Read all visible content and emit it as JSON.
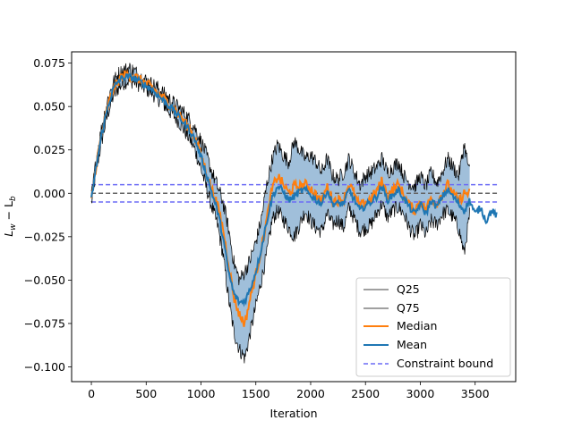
{
  "chart_data": {
    "type": "line",
    "title": "",
    "xlabel": "Iteration",
    "ylabel": "L_w − L_b",
    "ylabel_main": "L",
    "ylabel_sub1": "w",
    "ylabel_mid": " − L",
    "ylabel_sub2": "b",
    "xlim": [
      -180,
      3870
    ],
    "ylim": [
      -0.1085,
      0.0815
    ],
    "xticks": [
      0,
      500,
      1000,
      1500,
      2000,
      2500,
      3000,
      3500
    ],
    "xtick_labels": [
      "0",
      "500",
      "1000",
      "1500",
      "2000",
      "2500",
      "3000",
      "3500"
    ],
    "yticks": [
      -0.1,
      -0.075,
      -0.05,
      -0.025,
      0.0,
      0.025,
      0.05,
      0.075
    ],
    "ytick_labels": [
      "−0.100",
      "−0.075",
      "−0.050",
      "−0.025",
      "0.000",
      "0.025",
      "0.050",
      "0.075"
    ],
    "grid": false,
    "legend_position": "lower-right",
    "colors": {
      "q": "#000000",
      "median": "#ff7f0e",
      "mean": "#1f77b4",
      "band": "#8fb4d4",
      "bound": "#6b6bf5",
      "zero": "#666666"
    },
    "series": [
      {
        "name": "Q25",
        "role": "q25",
        "x": [
          0,
          50,
          100,
          150,
          200,
          250,
          300,
          350,
          400,
          450,
          500,
          550,
          600,
          650,
          700,
          750,
          800,
          850,
          900,
          950,
          1000,
          1050,
          1100,
          1150,
          1200,
          1250,
          1300,
          1350,
          1400,
          1450,
          1500,
          1550,
          1600,
          1650,
          1700,
          1750,
          1800,
          1850,
          1900,
          1950,
          2000,
          2050,
          2100,
          2150,
          2200,
          2250,
          2300,
          2350,
          2400,
          2450,
          2500,
          2550,
          2600,
          2650,
          2700,
          2750,
          2800,
          2850,
          2900,
          2950,
          3000,
          3050,
          3100,
          3150,
          3200,
          3250,
          3300,
          3350,
          3400,
          3450
        ],
        "y": [
          -0.006,
          0.015,
          0.032,
          0.046,
          0.056,
          0.061,
          0.064,
          0.065,
          0.064,
          0.062,
          0.06,
          0.058,
          0.055,
          0.052,
          0.048,
          0.045,
          0.041,
          0.036,
          0.031,
          0.024,
          0.014,
          0.003,
          -0.008,
          -0.018,
          -0.035,
          -0.06,
          -0.08,
          -0.09,
          -0.095,
          -0.08,
          -0.065,
          -0.05,
          -0.035,
          -0.015,
          -0.01,
          -0.015,
          -0.02,
          -0.025,
          -0.018,
          -0.01,
          -0.016,
          -0.02,
          -0.022,
          -0.012,
          -0.018,
          -0.015,
          -0.02,
          -0.008,
          -0.015,
          -0.022,
          -0.02,
          -0.018,
          -0.012,
          -0.006,
          -0.014,
          -0.01,
          -0.008,
          -0.012,
          -0.02,
          -0.025,
          -0.018,
          -0.024,
          -0.016,
          -0.018,
          -0.012,
          -0.01,
          -0.014,
          -0.02,
          -0.035,
          -0.012
        ]
      },
      {
        "name": "Q75",
        "role": "q75",
        "x": [
          0,
          50,
          100,
          150,
          200,
          250,
          300,
          350,
          400,
          450,
          500,
          550,
          600,
          650,
          700,
          750,
          800,
          850,
          900,
          950,
          1000,
          1050,
          1100,
          1150,
          1200,
          1250,
          1300,
          1350,
          1400,
          1450,
          1500,
          1550,
          1600,
          1650,
          1700,
          1750,
          1800,
          1850,
          1900,
          1950,
          2000,
          2050,
          2100,
          2150,
          2200,
          2250,
          2300,
          2350,
          2400,
          2450,
          2500,
          2550,
          2600,
          2650,
          2700,
          2750,
          2800,
          2850,
          2900,
          2950,
          3000,
          3050,
          3100,
          3150,
          3200,
          3250,
          3300,
          3350,
          3400,
          3450
        ],
        "y": [
          -0.002,
          0.022,
          0.04,
          0.054,
          0.064,
          0.069,
          0.071,
          0.072,
          0.07,
          0.067,
          0.065,
          0.063,
          0.061,
          0.058,
          0.055,
          0.052,
          0.049,
          0.046,
          0.042,
          0.037,
          0.03,
          0.022,
          0.012,
          0.004,
          -0.005,
          -0.02,
          -0.04,
          -0.05,
          -0.045,
          -0.038,
          -0.028,
          -0.015,
          0.005,
          0.02,
          0.028,
          0.022,
          0.018,
          0.03,
          0.025,
          0.02,
          0.022,
          0.018,
          0.012,
          0.02,
          0.01,
          0.008,
          0.012,
          0.02,
          0.012,
          0.005,
          0.01,
          0.012,
          0.015,
          0.02,
          0.012,
          0.015,
          0.018,
          0.01,
          0.006,
          0.004,
          0.01,
          0.004,
          0.012,
          0.006,
          0.012,
          0.02,
          0.015,
          0.01,
          0.028,
          0.012
        ]
      },
      {
        "name": "Median",
        "role": "median",
        "x": [
          0,
          50,
          100,
          150,
          200,
          250,
          300,
          350,
          400,
          450,
          500,
          550,
          600,
          650,
          700,
          750,
          800,
          850,
          900,
          950,
          1000,
          1050,
          1100,
          1150,
          1200,
          1250,
          1300,
          1350,
          1400,
          1450,
          1500,
          1550,
          1600,
          1650,
          1700,
          1750,
          1800,
          1850,
          1900,
          1950,
          2000,
          2050,
          2100,
          2150,
          2200,
          2250,
          2300,
          2350,
          2400,
          2450,
          2500,
          2550,
          2600,
          2650,
          2700,
          2750,
          2800,
          2850,
          2900,
          2950,
          3000,
          3050,
          3100,
          3150,
          3200,
          3250,
          3300,
          3350,
          3400,
          3450
        ],
        "y": [
          -0.004,
          0.019,
          0.036,
          0.05,
          0.06,
          0.065,
          0.068,
          0.068,
          0.067,
          0.065,
          0.063,
          0.061,
          0.058,
          0.055,
          0.052,
          0.049,
          0.045,
          0.041,
          0.037,
          0.031,
          0.022,
          0.012,
          0.002,
          -0.007,
          -0.02,
          -0.04,
          -0.06,
          -0.07,
          -0.075,
          -0.06,
          -0.047,
          -0.032,
          -0.015,
          0.003,
          0.01,
          0.005,
          0.0,
          0.004,
          0.004,
          0.005,
          0.003,
          -0.001,
          -0.005,
          0.004,
          -0.004,
          -0.004,
          -0.004,
          0.006,
          -0.001,
          -0.008,
          -0.005,
          -0.003,
          0.001,
          0.007,
          -0.001,
          0.002,
          0.005,
          -0.001,
          -0.007,
          -0.01,
          -0.004,
          -0.01,
          -0.002,
          -0.006,
          0.0,
          0.005,
          0.0,
          -0.005,
          0.0,
          0.0
        ]
      },
      {
        "name": "Mean",
        "role": "mean",
        "x": [
          0,
          50,
          100,
          150,
          200,
          250,
          300,
          350,
          400,
          450,
          500,
          550,
          600,
          650,
          700,
          750,
          800,
          850,
          900,
          950,
          1000,
          1050,
          1100,
          1150,
          1200,
          1250,
          1300,
          1350,
          1400,
          1450,
          1500,
          1550,
          1600,
          1650,
          1700,
          1750,
          1800,
          1850,
          1900,
          1950,
          2000,
          2050,
          2100,
          2150,
          2200,
          2250,
          2300,
          2350,
          2400,
          2450,
          2500,
          2550,
          2600,
          2650,
          2700,
          2750,
          2800,
          2850,
          2900,
          2950,
          3000,
          3050,
          3100,
          3150,
          3200,
          3250,
          3300,
          3350,
          3400,
          3450,
          3500,
          3550,
          3600,
          3650,
          3700
        ],
        "y": [
          -0.004,
          0.018,
          0.036,
          0.05,
          0.06,
          0.065,
          0.067,
          0.067,
          0.066,
          0.064,
          0.062,
          0.06,
          0.057,
          0.054,
          0.051,
          0.048,
          0.044,
          0.04,
          0.036,
          0.03,
          0.021,
          0.011,
          0.0,
          -0.01,
          -0.025,
          -0.045,
          -0.058,
          -0.063,
          -0.062,
          -0.055,
          -0.045,
          -0.032,
          -0.016,
          -0.002,
          0.004,
          0.001,
          -0.004,
          -0.002,
          0.001,
          0.002,
          -0.001,
          -0.004,
          -0.006,
          0.002,
          -0.006,
          -0.006,
          -0.006,
          0.002,
          -0.004,
          -0.01,
          -0.007,
          -0.005,
          -0.002,
          0.004,
          -0.004,
          -0.001,
          0.002,
          -0.003,
          -0.008,
          -0.012,
          -0.006,
          -0.012,
          -0.004,
          -0.008,
          -0.002,
          0.002,
          -0.002,
          -0.006,
          -0.01,
          -0.004,
          -0.012,
          -0.008,
          -0.016,
          -0.01,
          -0.013
        ]
      }
    ],
    "reference_lines": {
      "constraint_bound_label": "Constraint bound",
      "constraint_upper": 0.005,
      "constraint_lower": -0.005,
      "zero": 0.0,
      "x_range": [
        0,
        3700
      ]
    },
    "legend": [
      "Q25",
      "Q75",
      "Median",
      "Mean",
      "Constraint bound"
    ]
  }
}
